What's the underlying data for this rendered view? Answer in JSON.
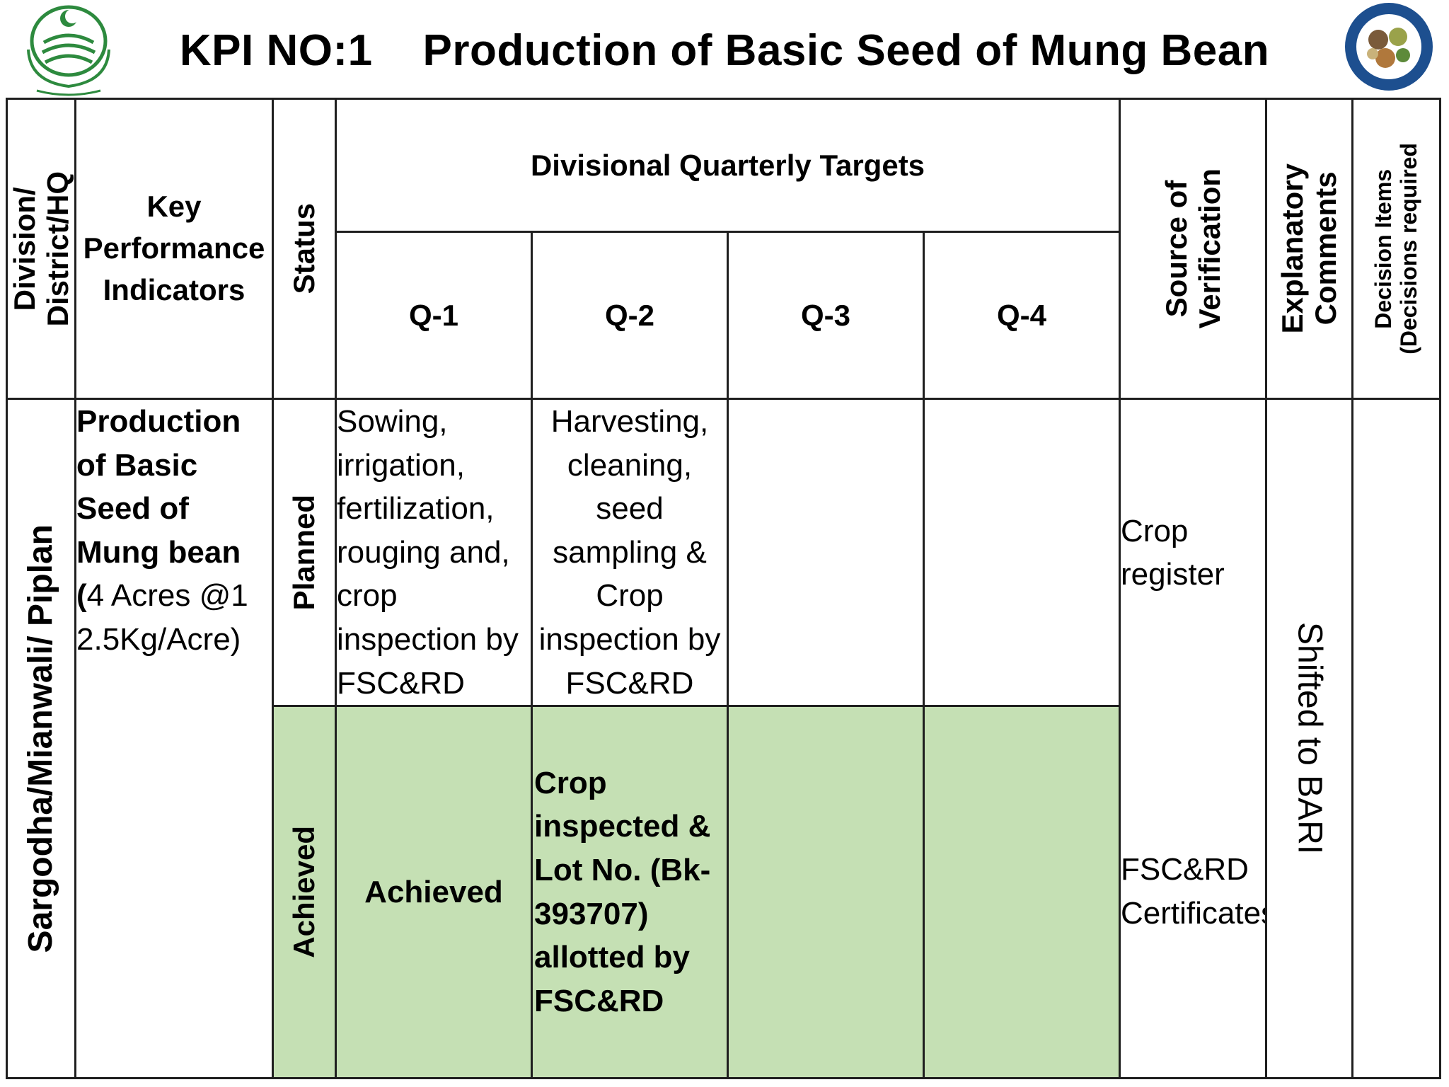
{
  "title": "KPI NO:1    Production of Basic Seed of Mung Bean",
  "colors": {
    "achieved_bg": "#c5e0b4",
    "border": "#1f1f1f"
  },
  "logos": {
    "left": "punjab-government-emblem",
    "right": "agriculture-research-institute-seal"
  },
  "header": {
    "division": "Division/\nDistrict/HQ",
    "kpi": "Key Performance Indicators",
    "status": "Status",
    "targets": "Divisional Quarterly Targets",
    "quarters": [
      "Q-1",
      "Q-2",
      "Q-3",
      "Q-4"
    ],
    "source": "Source of\nVerification",
    "comments": "Explanatory\nComments",
    "decision": "Decision Items\n(Decisions required"
  },
  "row": {
    "division": "Sargodha/Mianwali/ Piplan",
    "kpi_bold": "Production of Basic Seed of Mung bean (",
    "kpi_normal": "4 Acres @12.5Kg/Acre)",
    "planned": {
      "status": "Planned",
      "q1": "Sowing, irrigation, fertilization, rouging and, crop inspection by FSC&RD",
      "q2": "Harvesting, cleaning, seed sampling & Crop inspection by FSC&RD",
      "q3": "",
      "q4": "",
      "source": "Crop register"
    },
    "achieved": {
      "status": "Achieved",
      "q1": "Achieved",
      "q2": "Crop inspected & Lot No. (Bk-393707) allotted  by FSC&RD",
      "q3": "",
      "q4": "",
      "source": "FSC&RD Certificates"
    },
    "comments": "Shifted to BARI",
    "decision": ""
  }
}
